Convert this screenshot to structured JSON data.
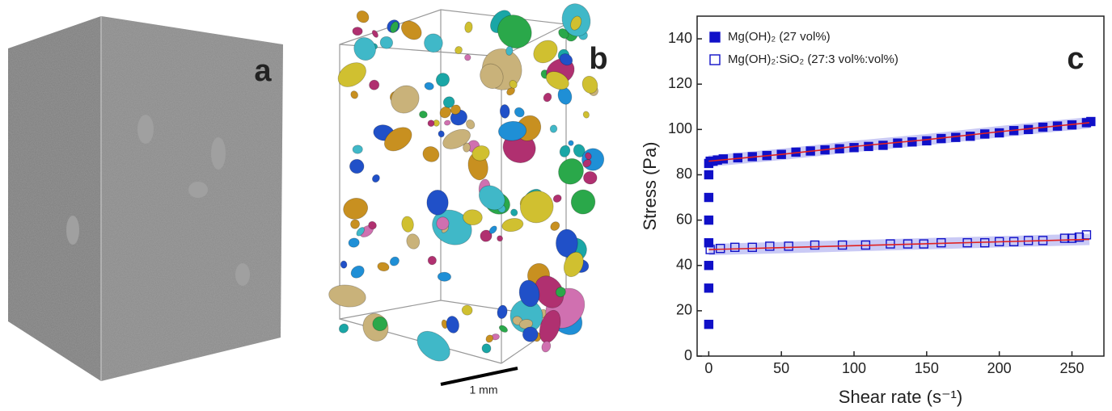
{
  "panels": {
    "a": "a",
    "b": "b",
    "scale_bar": "1 mm"
  },
  "chart_data": {
    "type": "scatter",
    "annotation": "c",
    "xlabel": "Shear rate (s⁻¹)",
    "ylabel": "Stress (Pa)",
    "xlim": [
      -8,
      272
    ],
    "ylim": [
      0,
      150
    ],
    "xticks": [
      0,
      50,
      100,
      150,
      200,
      250
    ],
    "yticks": [
      0,
      20,
      40,
      60,
      80,
      100,
      120,
      140
    ],
    "legend": "upper left",
    "series": [
      {
        "name": "Mg(OH)₂ (27 vol%)",
        "color": "#1010c8",
        "marker": "filled",
        "x": [
          0,
          0,
          0,
          0,
          0,
          0,
          0,
          0,
          1,
          3,
          6,
          10,
          20,
          30,
          40,
          50,
          60,
          70,
          80,
          90,
          100,
          110,
          120,
          130,
          140,
          150,
          160,
          170,
          180,
          190,
          200,
          210,
          220,
          230,
          240,
          250,
          260,
          263
        ],
        "values": [
          14,
          30,
          40,
          50,
          60,
          70,
          80,
          85,
          86,
          86,
          86.5,
          87,
          87.5,
          88,
          88.5,
          89,
          90,
          90.5,
          91,
          91.5,
          92,
          92.5,
          93,
          94,
          94.5,
          95,
          96,
          96.5,
          97,
          98,
          98.5,
          99.5,
          100,
          101,
          101.5,
          102,
          103,
          103.5
        ]
      },
      {
        "name": "Mg(OH)₂:SiO₂ (27:3 vol%:vol%)",
        "color": "#1010c8",
        "marker": "open",
        "x": [
          1,
          8,
          18,
          30,
          42,
          55,
          73,
          92,
          108,
          125,
          137,
          148,
          160,
          178,
          190,
          200,
          210,
          220,
          230,
          245,
          250,
          255,
          260
        ],
        "values": [
          47,
          47.5,
          48,
          48,
          48.5,
          48.5,
          49,
          49,
          49,
          49.5,
          49.5,
          49.5,
          50,
          50,
          50,
          50.5,
          50.5,
          51,
          51,
          52,
          52,
          52.5,
          53.5
        ]
      }
    ],
    "fits": [
      {
        "color": "#e02020",
        "x": [
          0,
          50,
          100,
          150,
          200,
          262
        ],
        "values": [
          86,
          89,
          92.5,
          95.5,
          99,
          103
        ]
      },
      {
        "color": "#e02020",
        "x": [
          0,
          262
        ],
        "values": [
          47,
          51.5
        ]
      }
    ]
  }
}
